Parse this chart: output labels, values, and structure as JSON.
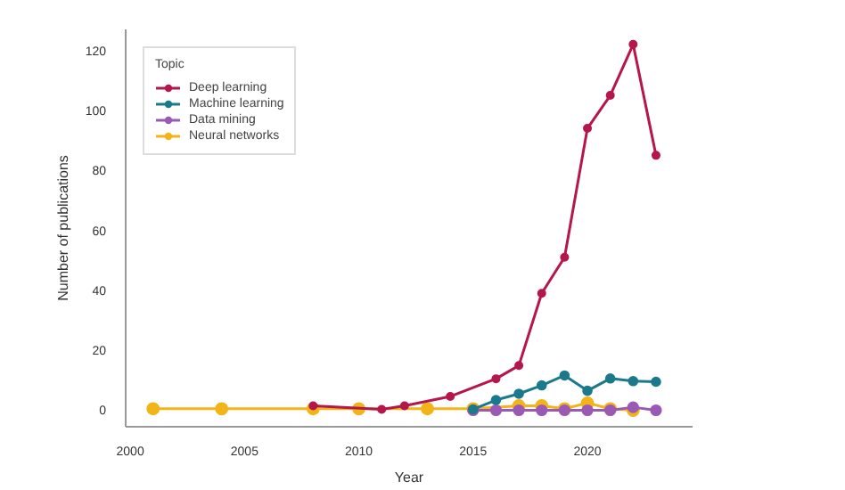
{
  "chart_data": {
    "type": "line",
    "xlabel": "Year",
    "ylabel": "Number of publications",
    "legend_title": "Topic",
    "series": [
      {
        "name": "Deep learning",
        "color": "#b5174b",
        "x": [
          2008,
          2011,
          2012,
          2014,
          2016,
          2017,
          2018,
          2019,
          2020,
          2021,
          2022,
          2023
        ],
        "values": [
          1.5,
          0.3,
          1.5,
          4.6,
          10.5,
          14.9,
          39,
          51,
          94,
          105,
          122,
          85
        ]
      },
      {
        "name": "Machine learning",
        "color": "#1a7a8c",
        "x": [
          2015,
          2016,
          2017,
          2018,
          2019,
          2020,
          2021,
          2022,
          2023
        ],
        "values": [
          0.3,
          3.4,
          5.5,
          8.3,
          11.6,
          6.5,
          10.6,
          9.7,
          9.5
        ]
      },
      {
        "name": "Data mining",
        "color": "#9b59b6",
        "x": [
          2015,
          2016,
          2017,
          2018,
          2019,
          2020,
          2021,
          2022,
          2023
        ],
        "values": [
          0,
          0,
          0,
          0,
          0,
          0,
          0,
          1,
          0
        ]
      },
      {
        "name": "Neural networks",
        "color": "#f2b418",
        "x": [
          2001,
          2004,
          2008,
          2010,
          2013,
          2015,
          2017,
          2018,
          2019,
          2020,
          2021,
          2022
        ],
        "values": [
          0.5,
          0.5,
          0.5,
          0.5,
          0.5,
          0.5,
          1.5,
          1.5,
          0.5,
          2.4,
          0.5,
          0
        ]
      }
    ],
    "xlim": [
      1999.8,
      2024.6
    ],
    "xticks": [
      2000,
      2005,
      2010,
      2015,
      2020
    ],
    "ylim": [
      -5.5,
      127
    ],
    "yticks": [
      0,
      20,
      40,
      60,
      80,
      100,
      120
    ],
    "grid": false,
    "legend": "top left",
    "marker": "circle",
    "line_style": "solid"
  }
}
